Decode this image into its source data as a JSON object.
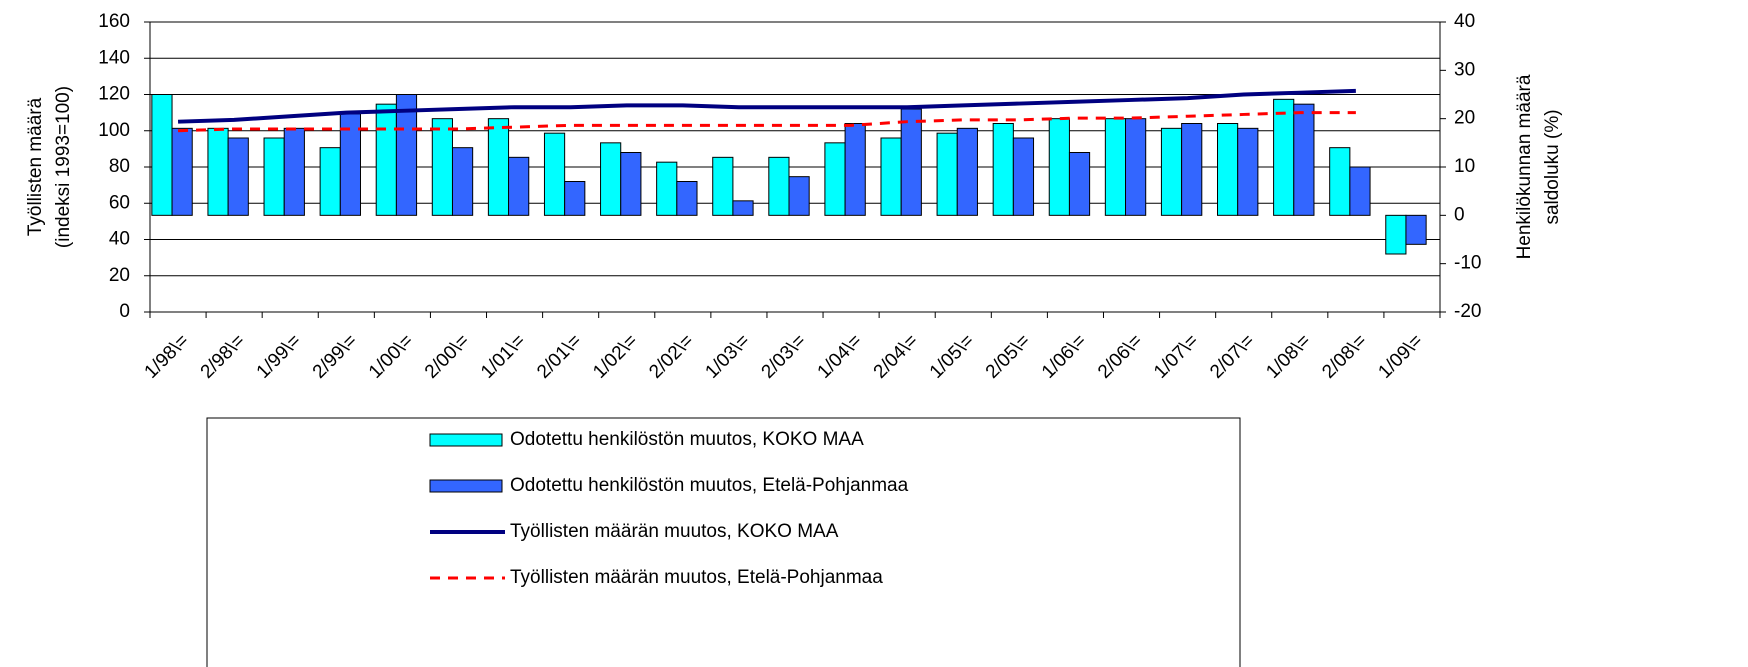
{
  "chart_data": {
    "type": "bar-line",
    "ylabel": [
      "Työllisten määrä",
      "(indeksi 1993=100)"
    ],
    "y2label": [
      "Henkilökunnan määrä",
      "saldoluku (%)"
    ],
    "categories": [
      "1/98\\=",
      "2/98\\=",
      "1/99\\=",
      "2/99\\=",
      "1/00\\=",
      "2/00\\=",
      "1/01\\=",
      "2/01\\=",
      "1/02\\=",
      "2/02\\=",
      "1/03\\=",
      "2/03\\=",
      "1/04\\=",
      "2/04\\=",
      "1/05\\=",
      "2/05\\=",
      "1/06\\=",
      "2/06\\=",
      "1/07\\=",
      "2/07\\=",
      "1/08\\=",
      "2/08\\=",
      "1/09\\="
    ],
    "series": [
      {
        "name": "Odotettu henkilöstön muutos, KOKO MAA",
        "type": "bar",
        "axis": "y2",
        "color": "#00ffff",
        "values": [
          25,
          18,
          16,
          14,
          23,
          20,
          20,
          17,
          15,
          11,
          12,
          12,
          15,
          16,
          17,
          19,
          20,
          20,
          18,
          19,
          24,
          14,
          -8
        ]
      },
      {
        "name": "Odotettu henkilöstön muutos, Etelä-Pohjanmaa",
        "type": "bar",
        "axis": "y2",
        "color": "#3366ff",
        "values": [
          18,
          16,
          18,
          21,
          25,
          14,
          12,
          7,
          13,
          7,
          3,
          8,
          19,
          22,
          18,
          16,
          13,
          20,
          19,
          18,
          23,
          10,
          -6
        ]
      },
      {
        "name": "Työllisten määrän muutos, KOKO MAA",
        "type": "line",
        "color": "#000080",
        "values": [
          105,
          106,
          108,
          110,
          111,
          112,
          113,
          113,
          114,
          114,
          113,
          113,
          113,
          113,
          114,
          115,
          116,
          117,
          118,
          120,
          121,
          122,
          null
        ]
      },
      {
        "name": "Työllisten määrän muutos, Etelä-Pohjanmaa",
        "type": "line",
        "dashed": true,
        "color": "#ff0000",
        "values": [
          100,
          101,
          101,
          101,
          101,
          101,
          102,
          103,
          103,
          103,
          103,
          103,
          103,
          105,
          106,
          106,
          107,
          107,
          108,
          109,
          110,
          110,
          null
        ]
      }
    ],
    "ylim": [
      0,
      160
    ],
    "yticks": [
      0,
      20,
      40,
      60,
      80,
      100,
      120,
      140,
      160
    ],
    "y2lim": [
      -20,
      40
    ],
    "y2ticks": [
      -20,
      -10,
      0,
      10,
      20,
      30,
      40
    ],
    "grid": true,
    "legend": "bottom"
  }
}
